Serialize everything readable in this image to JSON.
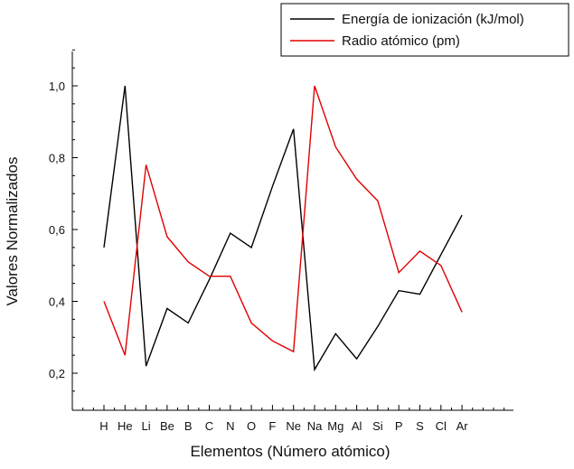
{
  "chart_data": {
    "type": "line",
    "title": "",
    "xlabel": "Elementos (Número atómico)",
    "ylabel": "Valores Normalizados",
    "categories": [
      "H",
      "He",
      "Li",
      "Be",
      "B",
      "C",
      "N",
      "O",
      "F",
      "Ne",
      "Na",
      "Mg",
      "Al",
      "Si",
      "P",
      "S",
      "Cl",
      "Ar"
    ],
    "ylim": [
      0.1,
      1.1
    ],
    "yticks": [
      "0,2",
      "0,4",
      "0,6",
      "0,8",
      "1,0"
    ],
    "ytick_values": [
      0.2,
      0.4,
      0.6,
      0.8,
      1.0
    ],
    "grid": false,
    "legend_position": "top-right",
    "series": [
      {
        "name": "Energía de ionización (kJ/mol)",
        "color": "#000000",
        "values": [
          0.55,
          1.0,
          0.22,
          0.38,
          0.34,
          0.46,
          0.59,
          0.55,
          0.72,
          0.88,
          0.21,
          0.31,
          0.24,
          0.33,
          0.43,
          0.42,
          0.53,
          0.64
        ]
      },
      {
        "name": "Radio atómico (pm)",
        "color": "#e00000",
        "values": [
          0.4,
          0.25,
          0.78,
          0.58,
          0.51,
          0.47,
          0.47,
          0.34,
          0.29,
          0.26,
          1.0,
          0.83,
          0.74,
          0.68,
          0.48,
          0.54,
          0.5,
          0.37
        ]
      }
    ]
  }
}
